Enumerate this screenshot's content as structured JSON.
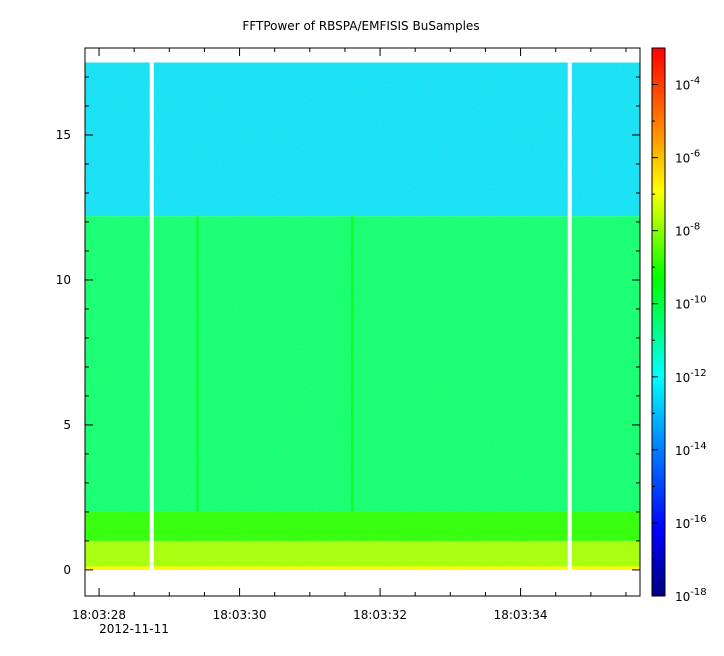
{
  "chart_data": {
    "type": "heatmap",
    "title": "FFTPower of RBSPA/EMFISIS  BuSamples",
    "xlabel": "",
    "ylabel": "",
    "x_ticks": [
      "18:03:28",
      "18:03:30",
      "18:03:32",
      "18:03:34"
    ],
    "x_tick_values_sec": [
      28,
      30,
      32,
      34
    ],
    "x_date_label": "2012-11-11",
    "xlim_sec": [
      27.8,
      35.7
    ],
    "y_ticks": [
      0,
      5,
      10,
      15
    ],
    "ylim": [
      -0.9,
      18.0
    ],
    "data_y_range": [
      0,
      17.5
    ],
    "data_x_range_sec": [
      27.8,
      35.7
    ],
    "gaps_sec": [
      28.75,
      34.7
    ],
    "colorbar": {
      "scale": "log",
      "range": [
        1e-18,
        0.001
      ],
      "tick_exponents": [
        -4,
        -6,
        -8,
        -10,
        -12,
        -14,
        -16,
        -18
      ],
      "tick_base": "10"
    },
    "bands": [
      {
        "y_from": 12.2,
        "y_to": 17.5,
        "level_log10": -12.5
      },
      {
        "y_from": 2.0,
        "y_to": 12.2,
        "level_log10": -10.5
      },
      {
        "y_from": 1.0,
        "y_to": 2.0,
        "level_log10": -9.0
      },
      {
        "y_from": 0.0,
        "y_to": 1.0,
        "level_log10": -7.8
      }
    ],
    "vertical_streaks_sec": [
      29.4,
      31.6
    ]
  }
}
